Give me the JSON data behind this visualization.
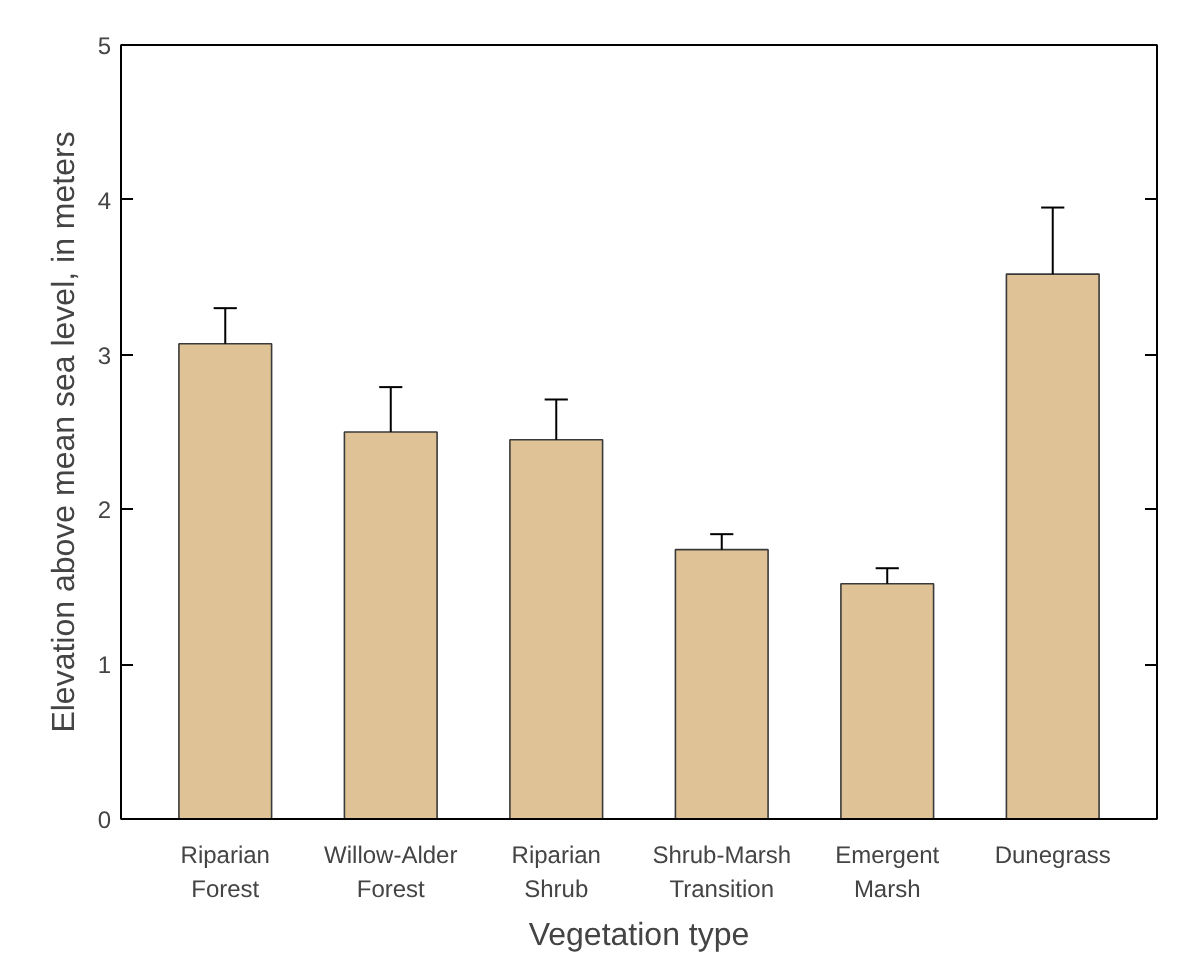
{
  "chart_data": {
    "type": "bar",
    "xlabel": "Vegetation type",
    "ylabel": "Elevation above mean sea level, in meters",
    "categories": [
      "Riparian Forest",
      "Willow-Alder Forest",
      "Riparian Shrub",
      "Shrub-Marsh Transition",
      "Emergent Marsh",
      "Dunegrass"
    ],
    "values": [
      3.07,
      2.5,
      2.45,
      1.74,
      1.52,
      3.52
    ],
    "errors": [
      [
        3.07,
        3.3
      ],
      [
        2.5,
        2.79
      ],
      [
        2.45,
        2.71
      ],
      [
        1.74,
        1.84
      ],
      [
        1.52,
        1.62
      ],
      [
        3.52,
        3.95
      ]
    ],
    "color": "#dfc396",
    "ylim": [
      0,
      5
    ],
    "yticks": [
      0,
      1,
      2,
      3,
      4,
      5
    ],
    "grid": false
  }
}
